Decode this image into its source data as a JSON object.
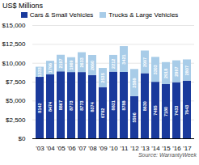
{
  "chart_data": {
    "type": "bar",
    "stacked": true,
    "ylabel": "US$ Millions",
    "categories": [
      "'03",
      "'04",
      "'05",
      "'06",
      "'07",
      "'08",
      "'09",
      "'10",
      "'11",
      "'12",
      "'13",
      "'14",
      "'15",
      "'16",
      "'17"
    ],
    "series": [
      {
        "name": "Cars & Small Vehicles",
        "color": "#1a3a9c",
        "values": [
          8142,
          8474,
          8867,
          8773,
          8773,
          8374,
          6782,
          8831,
          8788,
          5596,
          8630,
          7485,
          7180,
          7433,
          7643
        ]
      },
      {
        "name": "Trucks & Large Vehicles",
        "color": "#a8cce8",
        "values": [
          1333,
          1796,
          2197,
          1969,
          2633,
          2660,
          2535,
          2212,
          3421,
          3588,
          2997,
          3303,
          2918,
          2897,
          2807
        ]
      }
    ],
    "ylim": [
      0,
      15000
    ],
    "yticks": [
      {
        "value": 0,
        "label": "$0"
      },
      {
        "value": 2500,
        "label": "$2,500"
      },
      {
        "value": 5000,
        "label": "$5,000"
      },
      {
        "value": 7500,
        "label": "$7,500"
      },
      {
        "value": 10000,
        "label": "$10,000"
      },
      {
        "value": 12500,
        "label": "$12,500"
      },
      {
        "value": 15000,
        "label": "$15,000"
      }
    ],
    "grid": true,
    "legend": "top",
    "data_labels": true,
    "annotations": [
      "Source: WarrantyWeek"
    ]
  }
}
